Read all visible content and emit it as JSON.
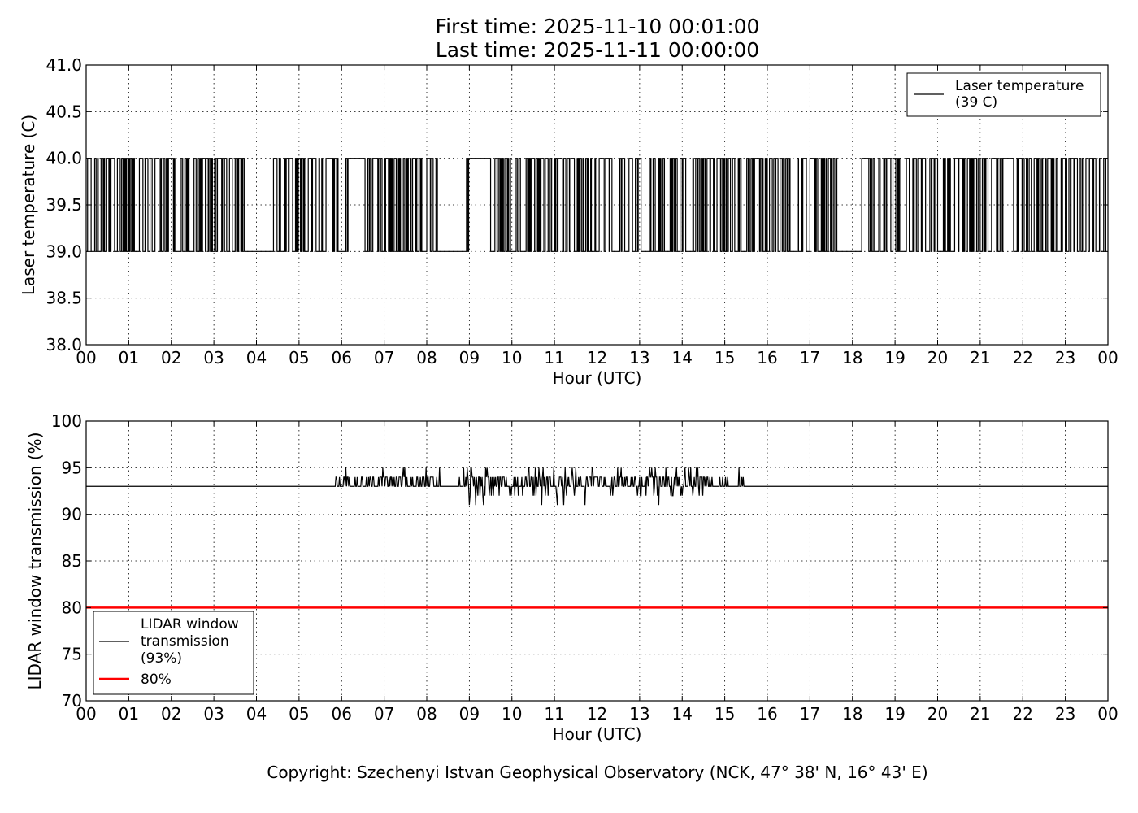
{
  "header": {
    "first_time": "First time: 2025-11-10 00:01:00",
    "last_time": "Last time: 2025-11-11 00:00:00"
  },
  "footer": {
    "copyright": "Copyright: Szechenyi Istvan Geophysical Observatory (NCK, 47° 38' N, 16° 43' E)"
  },
  "chart_data": [
    {
      "type": "line",
      "title": "",
      "xlabel": "Hour (UTC)",
      "ylabel": "Laser temperature (C)",
      "xlim": [
        0,
        24
      ],
      "ylim": [
        38.0,
        41.0
      ],
      "x_ticks": [
        "00",
        "01",
        "02",
        "03",
        "04",
        "05",
        "06",
        "07",
        "08",
        "09",
        "10",
        "11",
        "12",
        "13",
        "14",
        "15",
        "16",
        "17",
        "18",
        "19",
        "20",
        "21",
        "22",
        "23",
        "00"
      ],
      "y_ticks": [
        "38.0",
        "38.5",
        "39.0",
        "39.5",
        "40.0",
        "40.5",
        "41.0"
      ],
      "grid": true,
      "legend": {
        "position": "upper right",
        "entries": [
          {
            "label": "Laser temperature\n(39 C)",
            "color": "#000000"
          }
        ]
      },
      "series": [
        {
          "name": "Laser temperature\n(39 C)",
          "color": "#000000",
          "description": "step signal toggling between 39.0 and 40.0 C every minute, with flat spans",
          "x_start": 0.0167,
          "x_end": 24.0,
          "step_minutes": 1,
          "low": 39.0,
          "high": 40.0,
          "flat_segments": [
            {
              "x": [
                3.72,
                4.28
              ],
              "y": 39.0
            },
            {
              "x": [
                5.55,
                5.62
              ],
              "y": 39.0
            },
            {
              "x": [
                6.15,
                6.55
              ],
              "y": 40.0
            },
            {
              "x": [
                8.25,
                8.92
              ],
              "y": 39.0
            },
            {
              "x": [
                8.97,
                9.5
              ],
              "y": 40.0
            },
            {
              "x": [
                12.35,
                12.52
              ],
              "y": 39.0
            },
            {
              "x": [
                13.08,
                13.25
              ],
              "y": 39.0
            },
            {
              "x": [
                16.52,
                16.67
              ],
              "y": 39.0
            },
            {
              "x": [
                17.62,
                18.15
              ],
              "y": 39.0
            },
            {
              "x": [
                21.52,
                21.78
              ],
              "y": 40.0
            }
          ]
        }
      ]
    },
    {
      "type": "line",
      "title": "",
      "xlabel": "Hour (UTC)",
      "ylabel": "LIDAR window transmission (%)",
      "xlim": [
        0,
        24
      ],
      "ylim": [
        70,
        100
      ],
      "x_ticks": [
        "00",
        "01",
        "02",
        "03",
        "04",
        "05",
        "06",
        "07",
        "08",
        "09",
        "10",
        "11",
        "12",
        "13",
        "14",
        "15",
        "16",
        "17",
        "18",
        "19",
        "20",
        "21",
        "22",
        "23",
        "00"
      ],
      "y_ticks": [
        "70",
        "75",
        "80",
        "85",
        "90",
        "95",
        "100"
      ],
      "grid": true,
      "legend": {
        "position": "lower left",
        "entries": [
          {
            "label": "LIDAR window\ntransmission\n(93%)",
            "color": "#000000"
          },
          {
            "label": "80%",
            "color": "#ff0000"
          }
        ]
      },
      "series": [
        {
          "name": "LIDAR window\ntransmission\n(93%)",
          "color": "#000000",
          "baseline": 93,
          "description": "flat at 93% except noisy spikes between 93 and 95 (dips to ~91) from about 05.8 to 15.45 UTC",
          "active_range": [
            5.8,
            15.45
          ],
          "min": 91,
          "max": 95
        },
        {
          "name": "80%",
          "color": "#ff0000",
          "x": [
            0,
            24
          ],
          "y": [
            80,
            80
          ]
        }
      ]
    }
  ]
}
